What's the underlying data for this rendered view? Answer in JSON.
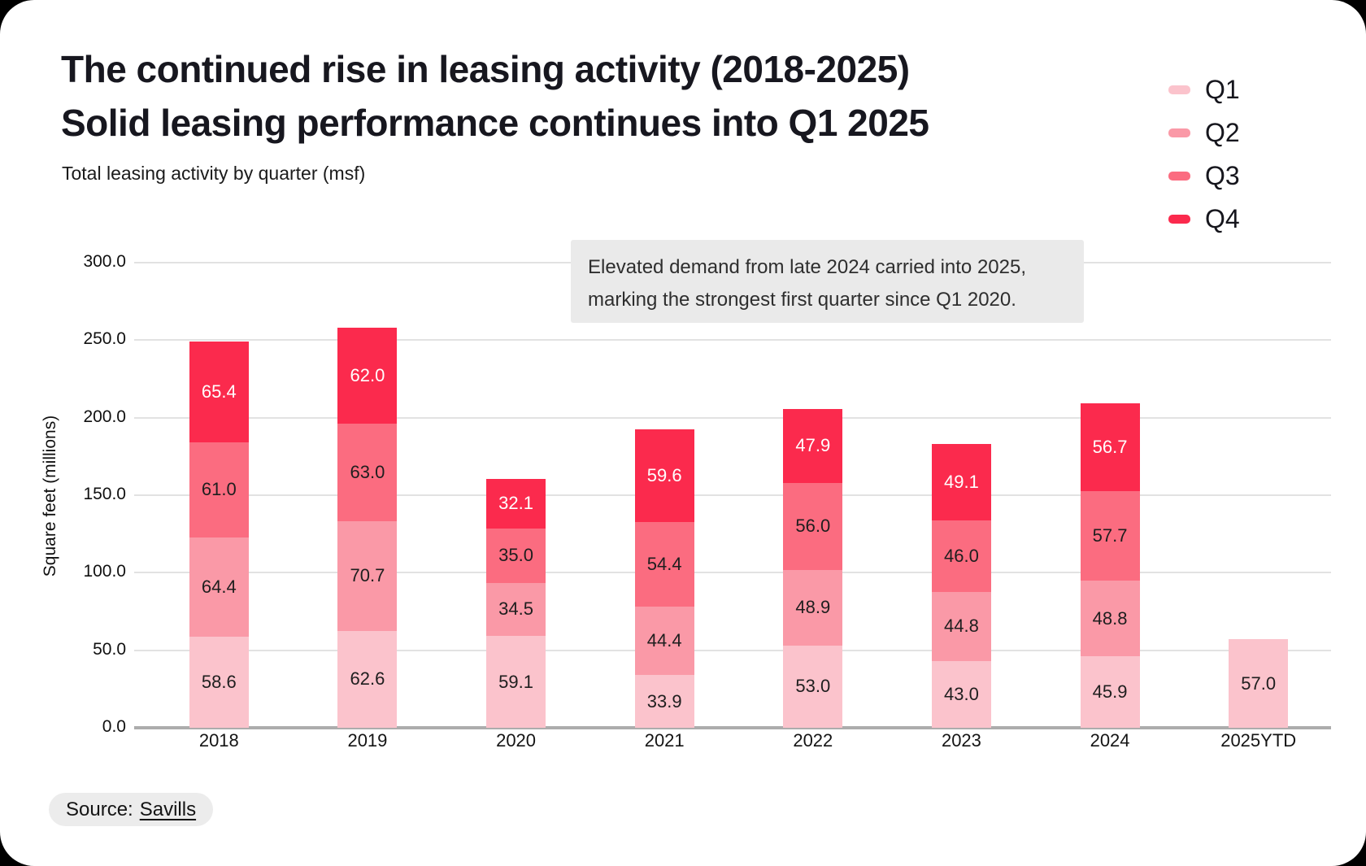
{
  "header": {
    "title_line1": "The continued rise in leasing activity (2018-2025)",
    "title_line2": "Solid leasing performance continues into Q1 2025",
    "subtitle": "Total leasing activity by quarter (msf)"
  },
  "legend": {
    "items": [
      {
        "label": "Q1",
        "color": "#FBC3CC"
      },
      {
        "label": "Q2",
        "color": "#FA99A7"
      },
      {
        "label": "Q3",
        "color": "#FB6C80"
      },
      {
        "label": "Q4",
        "color": "#FB2A4D"
      }
    ]
  },
  "annotation": {
    "text_line1": "Elevated demand from late 2024 carried into 2025,",
    "text_line2": "marking the strongest first quarter since Q1 2020."
  },
  "source": {
    "prefix": "Source:",
    "name": "Savills"
  },
  "chart_data": {
    "type": "bar",
    "stacked": true,
    "title": "Total leasing activity by quarter (msf)",
    "ylabel": "Square feet (millions)",
    "ylim": [
      0,
      300
    ],
    "ytick_step": 50,
    "ytick_decimals": 1,
    "grid": true,
    "legend_position": "top-right",
    "categories": [
      "2018",
      "2019",
      "2020",
      "2021",
      "2022",
      "2023",
      "2024",
      "2025YTD"
    ],
    "series": [
      {
        "name": "Q1",
        "color": "#FBC3CC",
        "label_color": "#1e1e1e",
        "values": [
          58.6,
          62.6,
          59.1,
          33.9,
          53.0,
          43.0,
          45.9,
          57.0
        ]
      },
      {
        "name": "Q2",
        "color": "#FA99A7",
        "label_color": "#1e1e1e",
        "values": [
          64.4,
          70.7,
          34.5,
          44.4,
          48.9,
          44.8,
          48.8,
          null
        ]
      },
      {
        "name": "Q3",
        "color": "#FB6C80",
        "label_color": "#1e1e1e",
        "values": [
          61.0,
          63.0,
          35.0,
          54.4,
          56.0,
          46.0,
          57.7,
          null
        ]
      },
      {
        "name": "Q4",
        "color": "#FB2A4D",
        "label_color": "#ffffff",
        "values": [
          65.4,
          62.0,
          32.1,
          59.6,
          47.9,
          49.1,
          56.7,
          null
        ]
      }
    ]
  }
}
